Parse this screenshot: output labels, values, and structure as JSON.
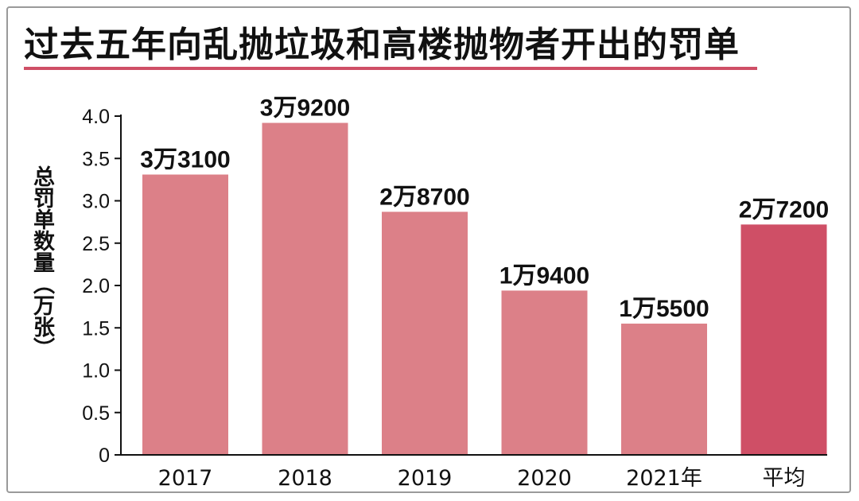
{
  "title": "过去五年向乱抛垃圾和高楼抛物者开出的罚单",
  "colors": {
    "bar": "#dc8088",
    "highlight": "#cf4f66",
    "axis": "#111111"
  },
  "chart_data": {
    "type": "bar",
    "title": "过去五年向乱抛垃圾和高楼抛物者开出的罚单",
    "xlabel": "",
    "ylabel": "总罚单数量（万张）",
    "ylim": [
      0,
      4.0
    ],
    "yticks": [
      {
        "value": 0,
        "label": "0"
      },
      {
        "value": 0.5,
        "label": "0.5"
      },
      {
        "value": 1.0,
        "label": "1.0"
      },
      {
        "value": 1.5,
        "label": "1.5"
      },
      {
        "value": 2.0,
        "label": "2.0"
      },
      {
        "value": 2.5,
        "label": "2.5"
      },
      {
        "value": 3.0,
        "label": "3.0"
      },
      {
        "value": 3.5,
        "label": "3.5"
      },
      {
        "value": 4.0,
        "label": "4.0"
      }
    ],
    "categories": [
      "2017",
      "2018",
      "2019",
      "2020",
      "2021年",
      "平均"
    ],
    "values": [
      3.31,
      3.92,
      2.87,
      1.94,
      1.55,
      2.72
    ],
    "data_labels": [
      "3万3100",
      "3万9200",
      "2万8700",
      "1万9400",
      "1万5500",
      "2万7200"
    ],
    "highlight_category": "平均",
    "grid": false,
    "legend": "none"
  }
}
